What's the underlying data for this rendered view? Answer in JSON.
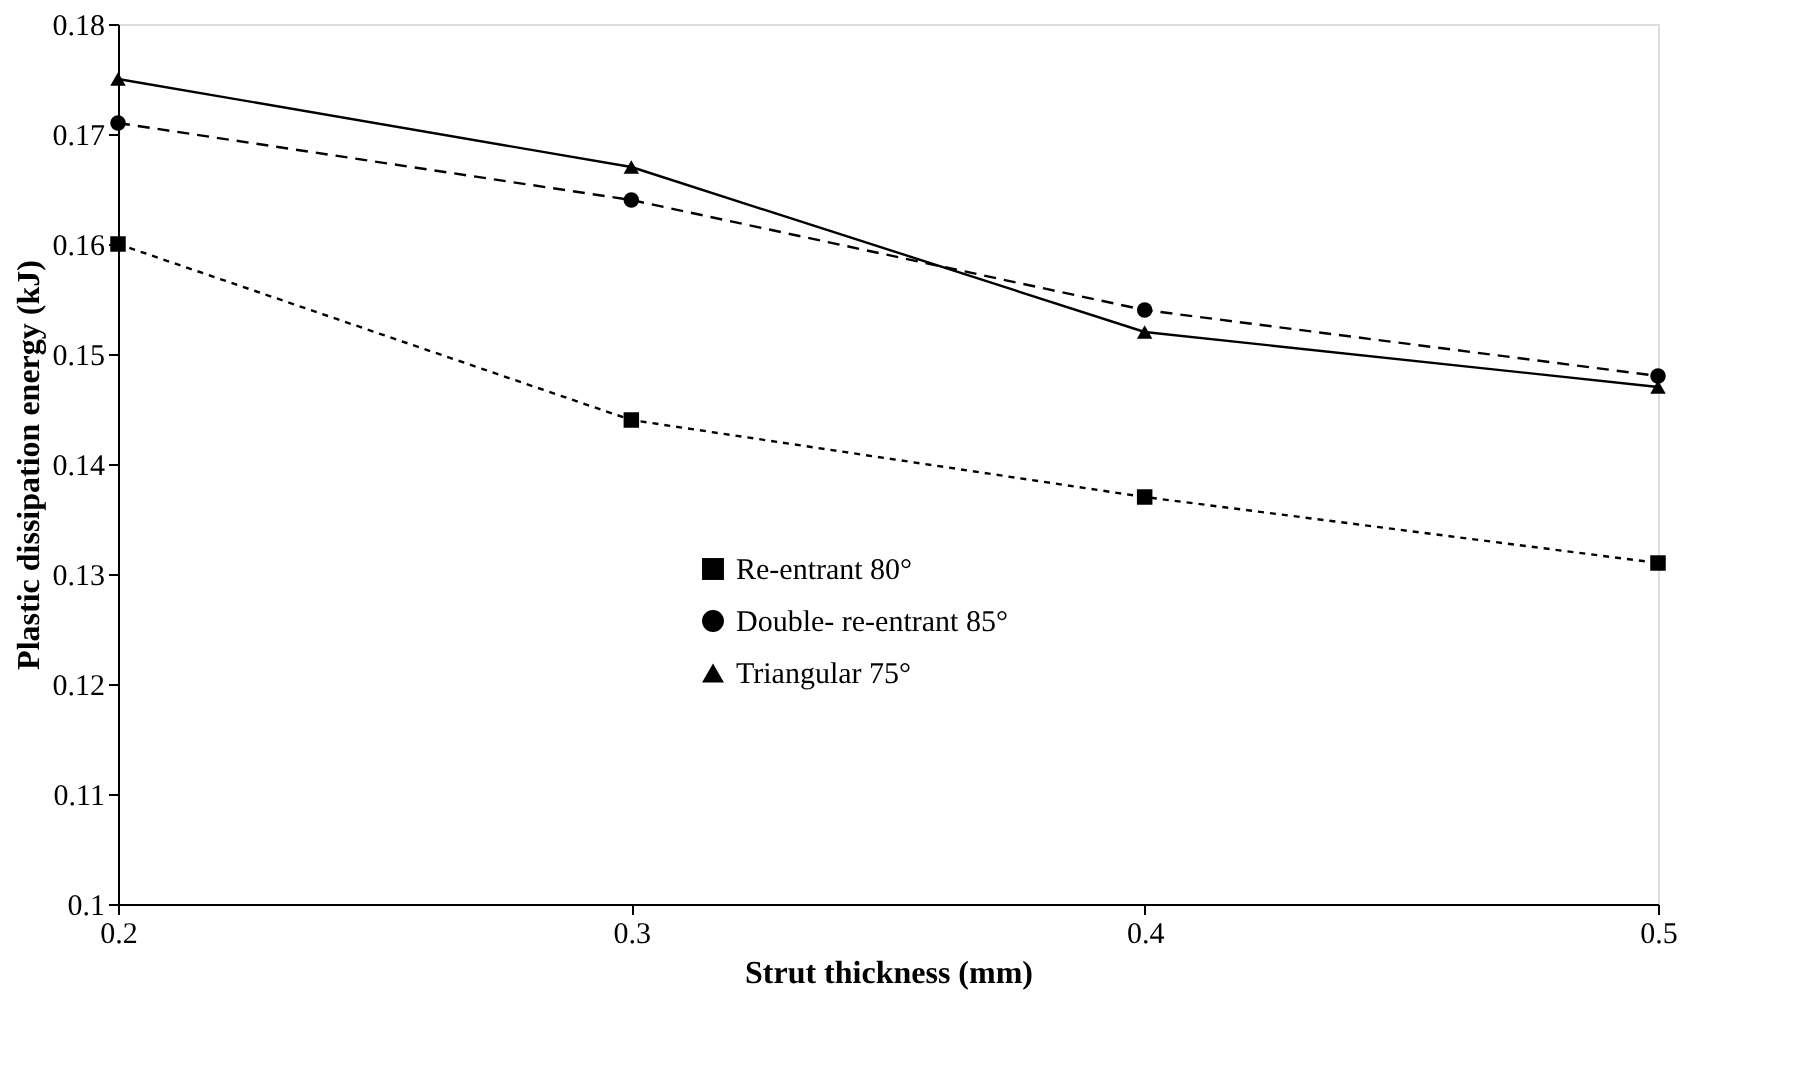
{
  "chart_data": {
    "type": "line",
    "xlabel": "Strut thickness (mm)",
    "ylabel": "Plastic dissipation energy (kJ)",
    "x": [
      0.2,
      0.3,
      0.4,
      0.5
    ],
    "xlim": [
      0.2,
      0.5
    ],
    "xticks": [
      0.2,
      0.3,
      0.4,
      0.5
    ],
    "ylim": [
      0.1,
      0.18
    ],
    "yticks": [
      0.1,
      0.11,
      0.12,
      0.13,
      0.14,
      0.15,
      0.16,
      0.17,
      0.18
    ],
    "grid": false,
    "legend": "bottom",
    "series": [
      {
        "name": "Re-entrant 80°",
        "color": "#000000",
        "marker": "square",
        "line_style": "dotted",
        "values": [
          0.16,
          0.144,
          0.137,
          0.131
        ]
      },
      {
        "name": "Double- re-entrant 85°",
        "color": "#000000",
        "marker": "circle",
        "line_style": "dashed",
        "values": [
          0.171,
          0.164,
          0.154,
          0.148
        ]
      },
      {
        "name": "Triangular 75°",
        "color": "#000000",
        "marker": "triangle",
        "line_style": "solid",
        "values": [
          0.175,
          0.167,
          0.152,
          0.147
        ]
      }
    ]
  }
}
